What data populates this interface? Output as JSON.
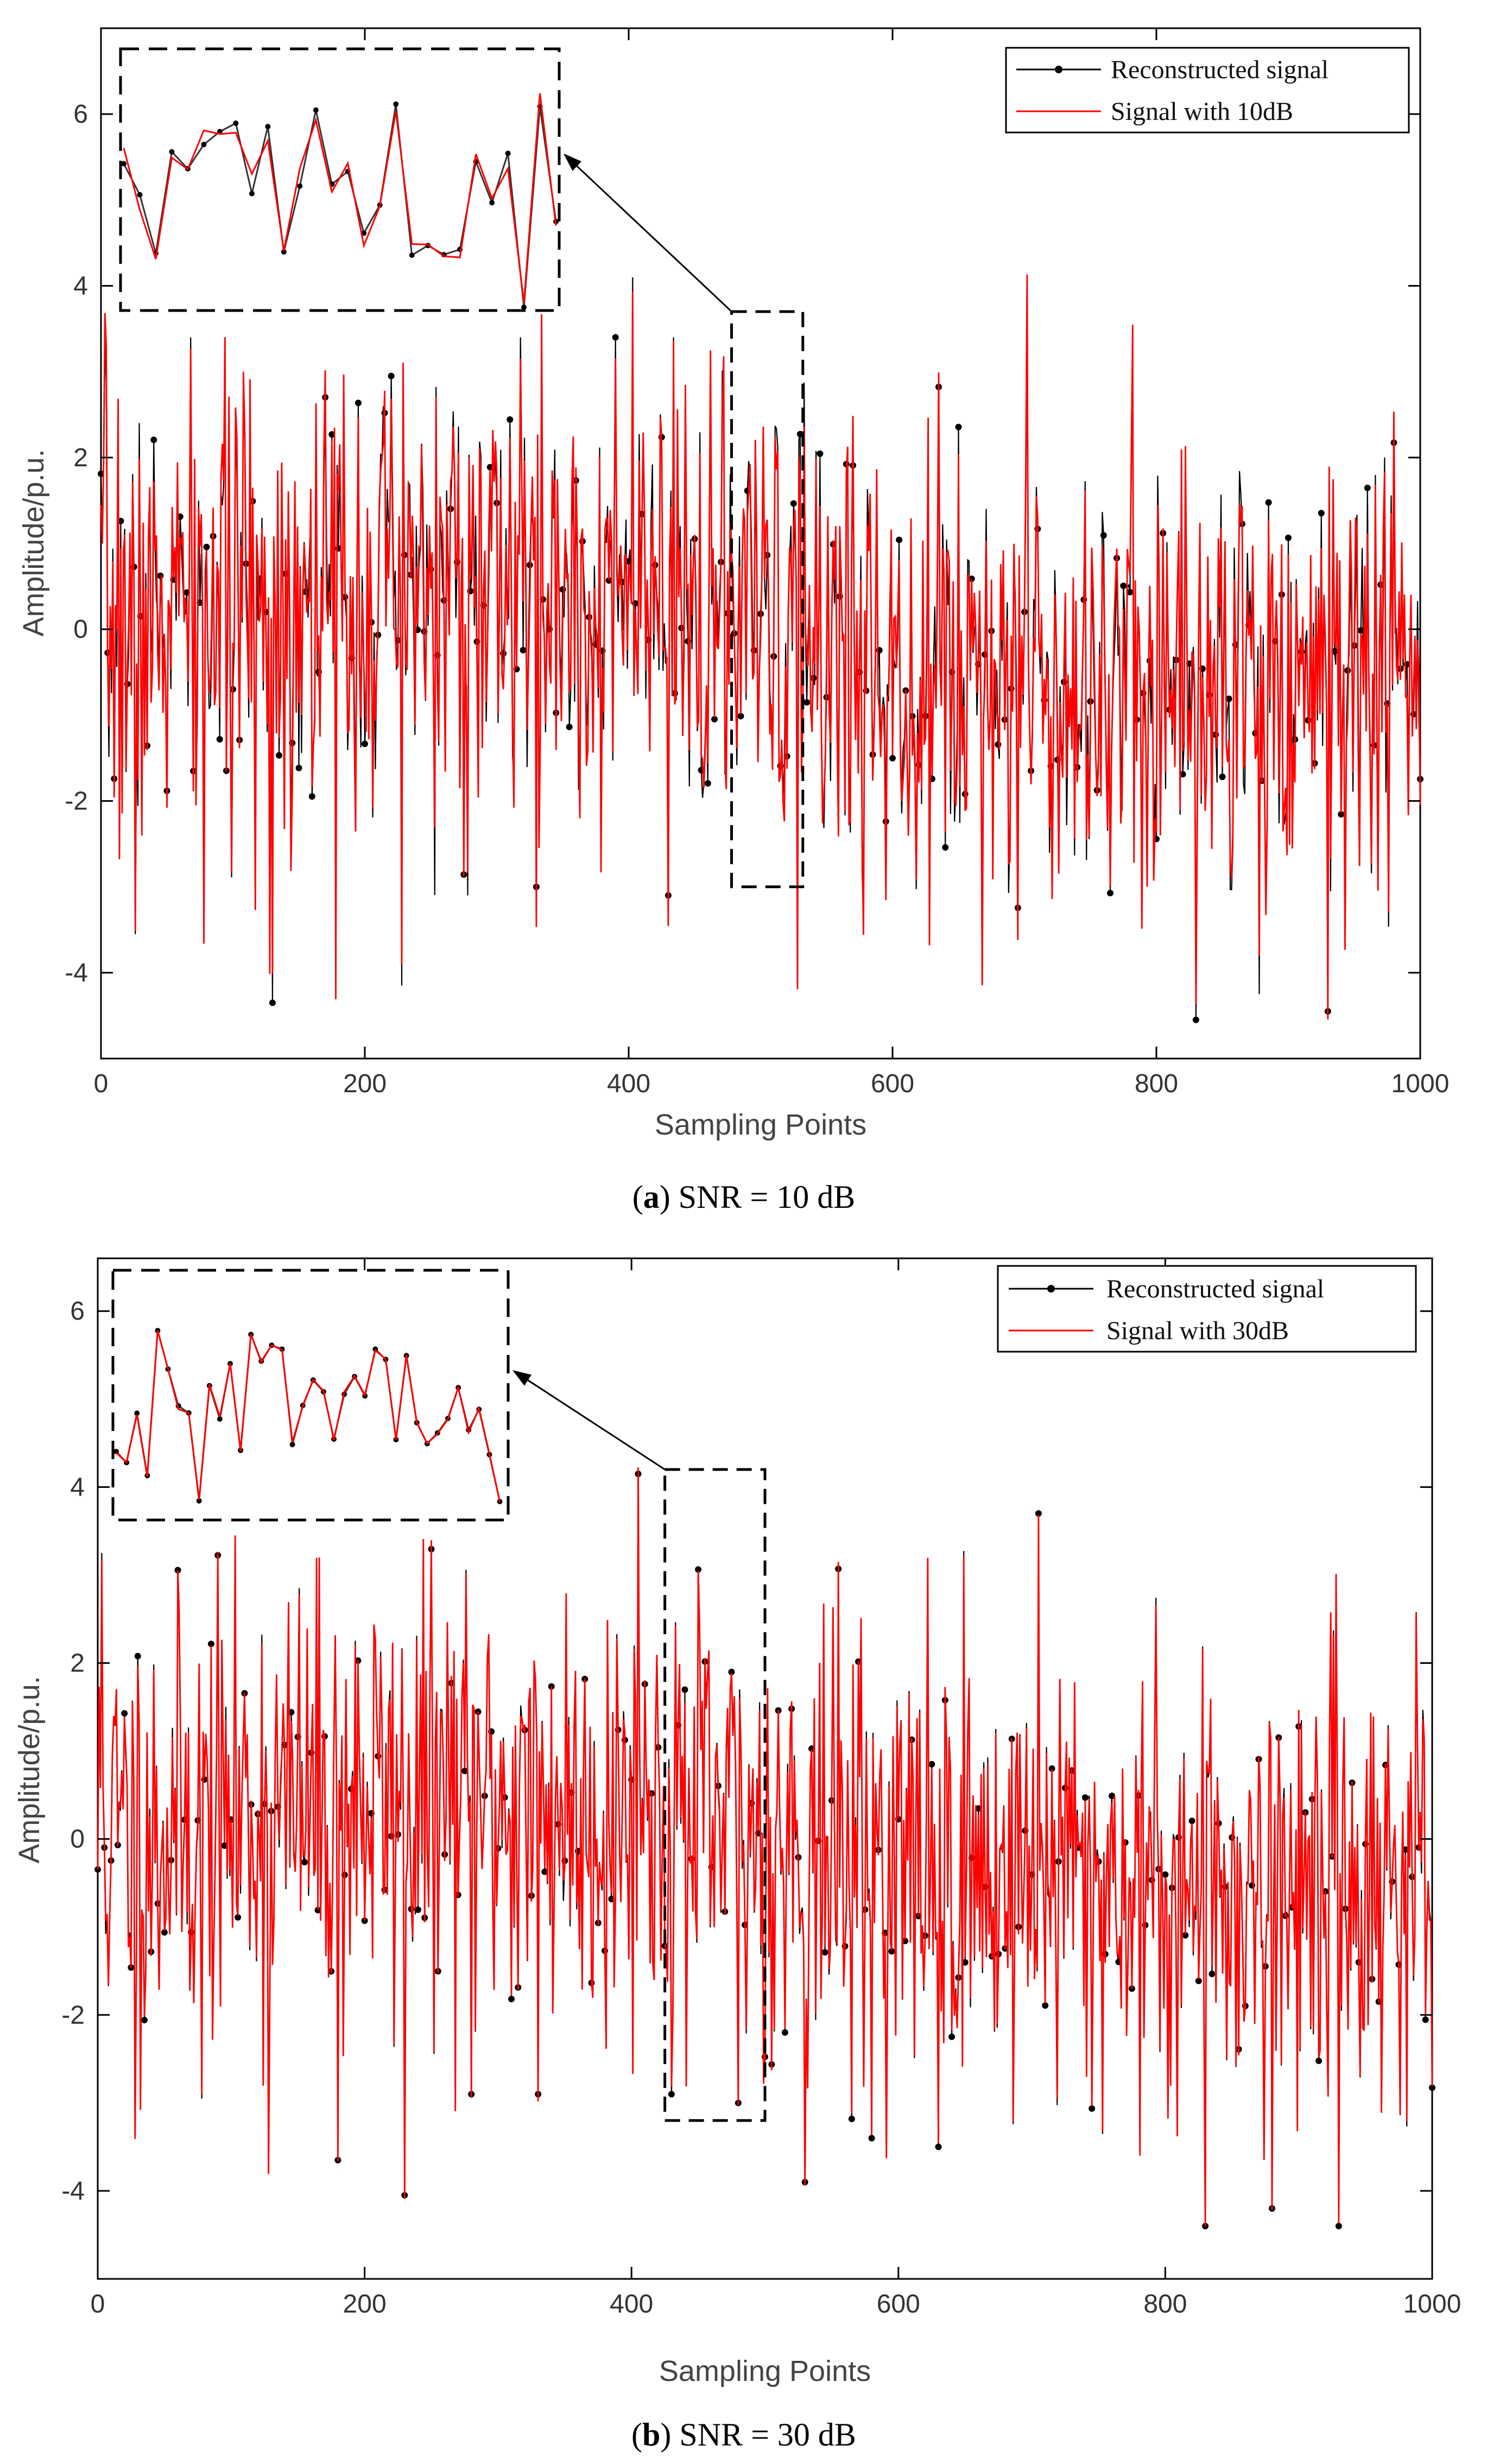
{
  "chart_data": [
    {
      "type": "line",
      "id": "a",
      "caption_prefix": "(",
      "caption_letter": "a",
      "caption_rest": ") SNR = 10 dB",
      "xlabel": "Sampling Points",
      "ylabel": "Amplitude/p.u.",
      "xlim": [
        0,
        1000
      ],
      "ylim": [
        -5,
        7
      ],
      "x_ticks": [
        "0",
        "200",
        "400",
        "600",
        "800",
        "1000"
      ],
      "y_ticks": [
        "-4",
        "-2",
        "0",
        "2",
        "4",
        "6"
      ],
      "series": [
        {
          "name": "Reconstructed signal",
          "color": "#000000",
          "marker": "dot"
        },
        {
          "name": "Signal with 10dB",
          "color": "#ff0000",
          "marker": "none"
        }
      ],
      "zoom_region": {
        "x": [
          478,
          532
        ],
        "y": [
          -3.0,
          3.7
        ]
      },
      "notable_points": [
        {
          "x": 3,
          "y": 3.3
        },
        {
          "x": 26,
          "y": -3.55
        },
        {
          "x": 78,
          "y": -3.1
        },
        {
          "x": 128,
          "y": -4.0
        },
        {
          "x": 130,
          "y": -4.35
        },
        {
          "x": 178,
          "y": -3.8
        },
        {
          "x": 228,
          "y": -4.15
        },
        {
          "x": 278,
          "y": -3.1
        },
        {
          "x": 330,
          "y": -3.0
        },
        {
          "x": 403,
          "y": 4.1
        },
        {
          "x": 430,
          "y": -3.1
        },
        {
          "x": 528,
          "y": -3.95
        },
        {
          "x": 578,
          "y": -3.4
        },
        {
          "x": 628,
          "y": -3.55
        },
        {
          "x": 702,
          "y": 3.7
        },
        {
          "x": 830,
          "y": -4.55
        },
        {
          "x": 878,
          "y": -4.25
        },
        {
          "x": 930,
          "y": -4.45
        }
      ]
    },
    {
      "type": "line",
      "id": "b",
      "caption_prefix": "(",
      "caption_letter": "b",
      "caption_rest": ") SNR = 30 dB",
      "xlabel": "Sampling Points",
      "ylabel": "Amplitude/p.u.",
      "xlim": [
        0,
        1000
      ],
      "ylim": [
        -5,
        6.6
      ],
      "x_ticks": [
        "0",
        "200",
        "400",
        "600",
        "800",
        "1000"
      ],
      "y_ticks": [
        "-4",
        "-2",
        "0",
        "2",
        "4",
        "6"
      ],
      "series": [
        {
          "name": "Reconstructed signal",
          "color": "#000000",
          "marker": "dot"
        },
        {
          "name": "Signal with 30dB",
          "color": "#ff0000",
          "marker": "none"
        }
      ],
      "zoom_region": {
        "x": [
          425,
          500
        ],
        "y": [
          -3.2,
          4.2
        ]
      },
      "notable_points": [
        {
          "x": 3,
          "y": 3.25
        },
        {
          "x": 28,
          "y": -3.4
        },
        {
          "x": 78,
          "y": -2.95
        },
        {
          "x": 128,
          "y": -3.8
        },
        {
          "x": 180,
          "y": -3.65
        },
        {
          "x": 230,
          "y": -4.05
        },
        {
          "x": 280,
          "y": -2.9
        },
        {
          "x": 330,
          "y": -2.9
        },
        {
          "x": 405,
          "y": 4.15
        },
        {
          "x": 430,
          "y": -2.9
        },
        {
          "x": 480,
          "y": -3.0
        },
        {
          "x": 530,
          "y": -3.9
        },
        {
          "x": 580,
          "y": -3.4
        },
        {
          "x": 630,
          "y": -3.5
        },
        {
          "x": 705,
          "y": 3.7
        },
        {
          "x": 830,
          "y": -4.4
        },
        {
          "x": 880,
          "y": -4.2
        },
        {
          "x": 930,
          "y": -4.4
        }
      ]
    }
  ]
}
